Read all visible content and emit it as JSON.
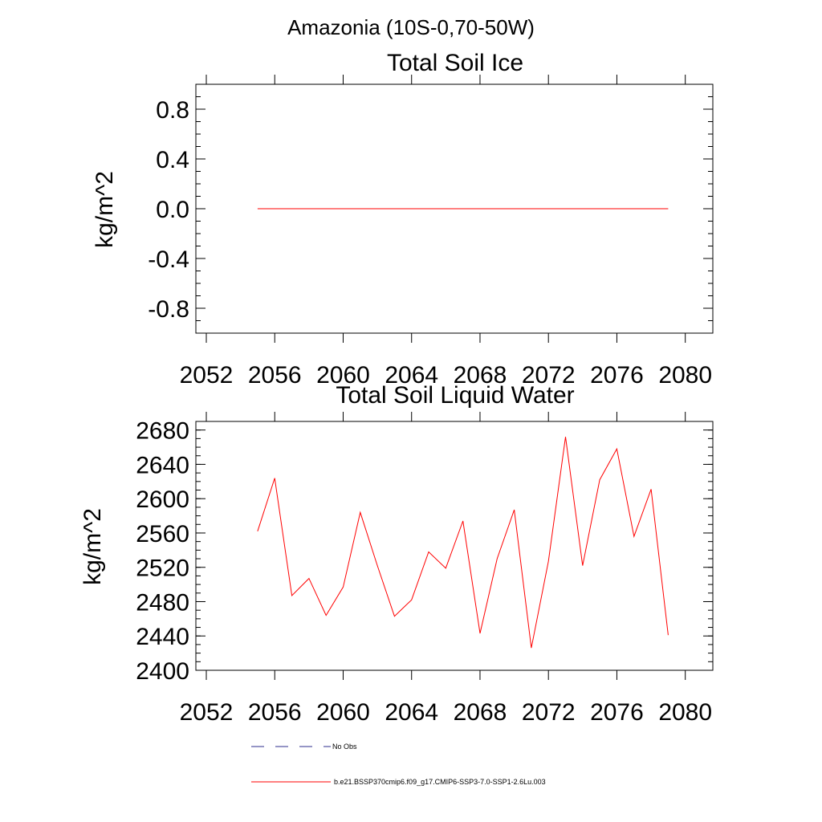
{
  "page_title": "Amazonia (10S-0,70-50W)",
  "legend": [
    {
      "label": "No Obs",
      "color": "#2c2c8c",
      "dash": true
    },
    {
      "label": "b.e21.BSSP370cmip6.f09_g17.CMIP6-SSP3-7.0-SSP1-2.6Lu.003",
      "color": "#ff0000",
      "dash": false
    }
  ],
  "chart_data": [
    {
      "type": "line",
      "title": "Total Soil Ice",
      "xlabel": "",
      "ylabel": "kg/m^2",
      "xlim": [
        2052,
        2081
      ],
      "ylim": [
        -1.0,
        1.0
      ],
      "xticks": [
        2052,
        2056,
        2060,
        2064,
        2068,
        2072,
        2076,
        2080
      ],
      "yticks": [
        -0.8,
        -0.4,
        0.0,
        0.4,
        0.8
      ],
      "ytick_labels": [
        "-0.8",
        "-0.4",
        "0.0",
        "0.4",
        "0.8"
      ],
      "grid": false,
      "series": [
        {
          "name": "b.e21.BSSP370cmip6.f09_g17.CMIP6-SSP3-7.0-SSP1-2.6Lu.003",
          "color": "#ff0000",
          "x": [
            2055,
            2056,
            2057,
            2058,
            2059,
            2060,
            2061,
            2062,
            2063,
            2064,
            2065,
            2066,
            2067,
            2068,
            2069,
            2070,
            2071,
            2072,
            2073,
            2074,
            2075,
            2076,
            2077,
            2078,
            2079
          ],
          "y": [
            0,
            0,
            0,
            0,
            0,
            0,
            0,
            0,
            0,
            0,
            0,
            0,
            0,
            0,
            0,
            0,
            0,
            0,
            0,
            0,
            0,
            0,
            0,
            0,
            0
          ]
        }
      ]
    },
    {
      "type": "line",
      "title": "Total Soil Liquid Water",
      "xlabel": "",
      "ylabel": "kg/m^2",
      "xlim": [
        2052,
        2081
      ],
      "ylim": [
        2400,
        2690
      ],
      "xticks": [
        2052,
        2056,
        2060,
        2064,
        2068,
        2072,
        2076,
        2080
      ],
      "yticks": [
        2400,
        2440,
        2480,
        2520,
        2560,
        2600,
        2640,
        2680
      ],
      "ytick_labels": [
        "2400",
        "2440",
        "2480",
        "2520",
        "2560",
        "2600",
        "2640",
        "2680"
      ],
      "grid": false,
      "series": [
        {
          "name": "b.e21.BSSP370cmip6.f09_g17.CMIP6-SSP3-7.0-SSP1-2.6Lu.003",
          "color": "#ff0000",
          "x": [
            2055,
            2056,
            2057,
            2058,
            2059,
            2060,
            2061,
            2062,
            2063,
            2064,
            2065,
            2066,
            2067,
            2068,
            2069,
            2070,
            2071,
            2072,
            2073,
            2074,
            2075,
            2076,
            2077,
            2078,
            2079
          ],
          "y": [
            2562,
            2624,
            2487,
            2507,
            2464,
            2497,
            2584,
            2522,
            2463,
            2482,
            2538,
            2519,
            2574,
            2443,
            2530,
            2587,
            2426,
            2527,
            2672,
            2522,
            2622,
            2658,
            2556,
            2611,
            2441
          ]
        }
      ]
    }
  ]
}
